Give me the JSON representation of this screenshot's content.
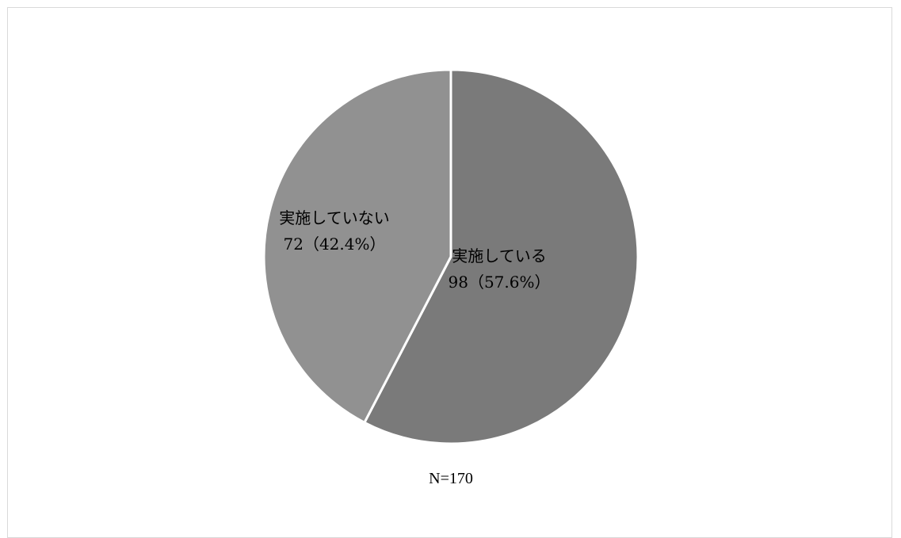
{
  "chart_data": {
    "type": "pie",
    "slices": [
      {
        "category": "実施している",
        "value": 98,
        "percent_label": "98（57.6%）",
        "color": "#7a7a7a"
      },
      {
        "category": "実施していない",
        "value": 72,
        "percent_label": "72（42.4%）",
        "color": "#919191"
      }
    ],
    "start_angle_deg": 0,
    "direction": "clockwise",
    "slice_border_color": "#ffffff",
    "footnote": "N=170",
    "legend": "none"
  }
}
